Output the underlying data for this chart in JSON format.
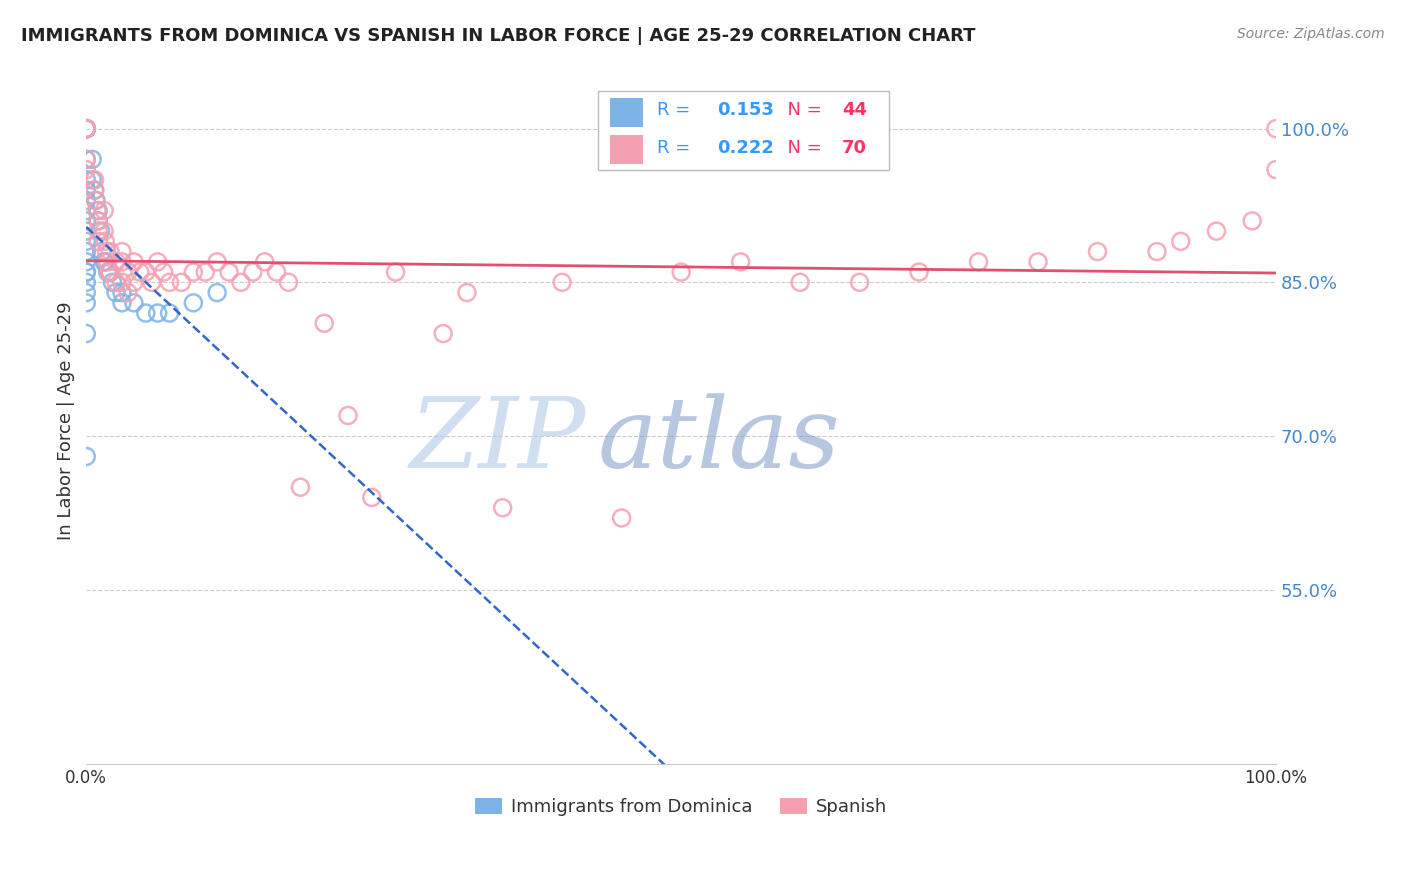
{
  "title": "IMMIGRANTS FROM DOMINICA VS SPANISH IN LABOR FORCE | AGE 25-29 CORRELATION CHART",
  "source": "Source: ZipAtlas.com",
  "ylabel": "In Labor Force | Age 25-29",
  "xlim": [
    0.0,
    1.0
  ],
  "ylim": [
    0.38,
    1.05
  ],
  "yticks": [
    0.55,
    0.7,
    0.85,
    1.0
  ],
  "ytick_labels": [
    "55.0%",
    "70.0%",
    "85.0%",
    "100.0%"
  ],
  "xticks": [
    0.0,
    0.1,
    0.2,
    0.3,
    0.4,
    0.5,
    0.6,
    0.7,
    0.8,
    0.9,
    1.0
  ],
  "xtick_labels": [
    "0.0%",
    "",
    "",
    "",
    "",
    "",
    "",
    "",
    "",
    "",
    "100.0%"
  ],
  "blue_R": 0.153,
  "blue_N": 44,
  "pink_R": 0.222,
  "pink_N": 70,
  "blue_color": "#7eb3e8",
  "pink_color": "#f4a0b0",
  "blue_line_color": "#3366cc",
  "pink_line_color": "#e05070",
  "blue_x": [
    0.0,
    0.0,
    0.0,
    0.0,
    0.0,
    0.0,
    0.0,
    0.0,
    0.0,
    0.0,
    0.0,
    0.0,
    0.0,
    0.0,
    0.0,
    0.0,
    0.0,
    0.0,
    0.0,
    0.0,
    0.0,
    0.0,
    0.005,
    0.005,
    0.007,
    0.008,
    0.01,
    0.01,
    0.012,
    0.013,
    0.015,
    0.016,
    0.018,
    0.02,
    0.022,
    0.025,
    0.03,
    0.03,
    0.04,
    0.05,
    0.06,
    0.07,
    0.09,
    0.11
  ],
  "blue_y": [
    1.0,
    1.0,
    1.0,
    1.0,
    1.0,
    0.97,
    0.95,
    0.94,
    0.93,
    0.92,
    0.91,
    0.9,
    0.89,
    0.88,
    0.87,
    0.86,
    0.86,
    0.85,
    0.84,
    0.83,
    0.8,
    0.68,
    0.97,
    0.95,
    0.94,
    0.93,
    0.92,
    0.91,
    0.9,
    0.88,
    0.87,
    0.87,
    0.86,
    0.86,
    0.85,
    0.84,
    0.84,
    0.83,
    0.83,
    0.82,
    0.82,
    0.82,
    0.83,
    0.84
  ],
  "pink_x": [
    0.0,
    0.0,
    0.0,
    0.0,
    0.0,
    0.0,
    0.007,
    0.007,
    0.008,
    0.009,
    0.01,
    0.01,
    0.01,
    0.015,
    0.015,
    0.016,
    0.017,
    0.018,
    0.019,
    0.02,
    0.02,
    0.025,
    0.025,
    0.03,
    0.03,
    0.03,
    0.035,
    0.035,
    0.04,
    0.04,
    0.045,
    0.05,
    0.055,
    0.06,
    0.065,
    0.07,
    0.08,
    0.09,
    0.1,
    0.11,
    0.12,
    0.13,
    0.14,
    0.15,
    0.16,
    0.17,
    0.18,
    0.2,
    0.22,
    0.24,
    0.26,
    0.3,
    0.32,
    0.35,
    0.4,
    0.45,
    0.5,
    0.55,
    0.6,
    0.65,
    0.7,
    0.75,
    0.8,
    0.85,
    0.9,
    0.92,
    0.95,
    0.98,
    1.0,
    1.0
  ],
  "pink_y": [
    1.0,
    1.0,
    1.0,
    1.0,
    0.97,
    0.96,
    0.95,
    0.94,
    0.93,
    0.92,
    0.91,
    0.9,
    0.89,
    0.92,
    0.9,
    0.89,
    0.88,
    0.87,
    0.86,
    0.88,
    0.86,
    0.87,
    0.85,
    0.88,
    0.87,
    0.85,
    0.86,
    0.84,
    0.87,
    0.85,
    0.86,
    0.86,
    0.85,
    0.87,
    0.86,
    0.85,
    0.85,
    0.86,
    0.86,
    0.87,
    0.86,
    0.85,
    0.86,
    0.87,
    0.86,
    0.85,
    0.65,
    0.81,
    0.72,
    0.64,
    0.86,
    0.8,
    0.84,
    0.63,
    0.85,
    0.62,
    0.86,
    0.87,
    0.85,
    0.85,
    0.86,
    0.87,
    0.87,
    0.88,
    0.88,
    0.89,
    0.9,
    0.91,
    0.96,
    1.0
  ],
  "watermark_zip": "ZIP",
  "watermark_atlas": "atlas",
  "watermark_color_zip": "#b0c8e8",
  "watermark_color_atlas": "#7090c0",
  "bg_color": "#ffffff",
  "grid_color": "#cccccc"
}
